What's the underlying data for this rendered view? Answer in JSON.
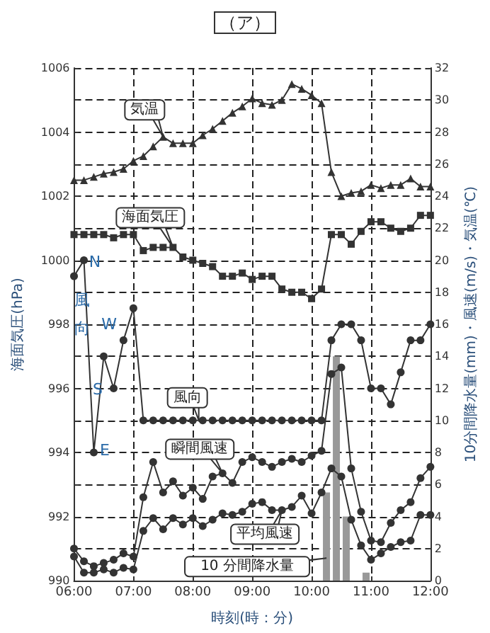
{
  "chart_data": {
    "type": "line",
    "title": "（ア）",
    "xlabel": "時刻(時：分)",
    "ylabel": "海面気圧(hPa)",
    "y2label": "10分間降水量(mm)・風速(m/s)・気温(℃)",
    "x": [
      6,
      6.167,
      6.333,
      6.5,
      6.667,
      6.833,
      7,
      7.167,
      7.333,
      7.5,
      7.667,
      7.833,
      8,
      8.167,
      8.333,
      8.5,
      8.667,
      8.833,
      9,
      9.167,
      9.333,
      9.5,
      9.667,
      9.833,
      10,
      10.167,
      10.333,
      10.5,
      10.667,
      10.833,
      11,
      11.167,
      11.333,
      11.5,
      11.667,
      11.833,
      12
    ],
    "series": [
      {
        "type": "bar",
        "axis": "y2",
        "color": "#999999",
        "x": [
          10.25,
          10.417,
          10.583,
          10.917
        ],
        "values": [
          5.5,
          14,
          4,
          0.5
        ]
      },
      {
        "axis": "y2",
        "color": "#333333",
        "marker": "triangle",
        "values": [
          25.0,
          25.0,
          25.2,
          25.4,
          25.5,
          25.7,
          26.2,
          26.5,
          27.1,
          27.7,
          27.3,
          27.3,
          27.3,
          27.8,
          28.2,
          28.7,
          29.2,
          29.6,
          30.1,
          29.8,
          29.7,
          30.0,
          31.0,
          30.7,
          30.3,
          29.8,
          25.5,
          24.0,
          24.2,
          24.3,
          24.7,
          24.5,
          24.7,
          24.7,
          25.1,
          24.6,
          24.6
        ]
      },
      {
        "color": "#333333",
        "marker": "square",
        "values": [
          1000.8,
          1000.8,
          1000.8,
          1000.8,
          1000.7,
          1000.8,
          1000.8,
          1000.3,
          1000.4,
          1000.4,
          1000.4,
          1000.1,
          1000.0,
          999.9,
          999.8,
          999.5,
          999.5,
          999.6,
          999.4,
          999.5,
          999.5,
          999.1,
          999.0,
          999.0,
          998.8,
          999.1,
          1000.8,
          1000.8,
          1000.5,
          1000.9,
          1001.2,
          1001.2,
          1001.0,
          1000.9,
          1001.0,
          1001.4,
          1001.4
        ]
      },
      {
        "color": "#333333",
        "marker": "circle",
        "values": [
          999.5,
          1000.0,
          994.0,
          997.0,
          996.0,
          997.5,
          998.5,
          995,
          995,
          995,
          995,
          995,
          995,
          995,
          995,
          995,
          995,
          995,
          995,
          995,
          995,
          995,
          995,
          995,
          995,
          995,
          997.5,
          998,
          998,
          997.5,
          996,
          996,
          995.5,
          996.5,
          997.5,
          997.5,
          998
        ]
      },
      {
        "axis": "y2",
        "color": "#333333",
        "marker": "circle",
        "values": [
          2.0,
          1.2,
          0.9,
          1.1,
          1.3,
          1.7,
          1.5,
          5.2,
          7.4,
          5.5,
          6.2,
          5.3,
          5.8,
          5.1,
          6.5,
          6.7,
          6.1,
          7.4,
          7.7,
          7.4,
          7.1,
          7.4,
          7.6,
          7.4,
          7.8,
          8.1,
          12.9,
          13.3,
          7.0,
          4.3,
          2.5,
          2.4,
          3.6,
          4.4,
          4.9,
          6.4,
          7.1
        ]
      },
      {
        "axis": "y2",
        "color": "#333333",
        "marker": "circle",
        "values": [
          1.5,
          0.5,
          0.5,
          0.7,
          0.5,
          0.8,
          0.7,
          3.1,
          3.9,
          3.2,
          3.9,
          3.5,
          3.9,
          3.4,
          3.8,
          4.2,
          4.1,
          4.3,
          4.8,
          4.9,
          4.4,
          4.4,
          4.6,
          5.3,
          4.2,
          5.5,
          7.0,
          6.5,
          3.8,
          2.2,
          1.3,
          1.7,
          2.1,
          2.4,
          2.5,
          4.1,
          4.1
        ]
      }
    ],
    "annotations": [
      {
        "text": "気温",
        "x": 7.5,
        "y": 1003.85
      },
      {
        "text": "海面気圧",
        "x": 7.667,
        "y": 1000.4
      },
      {
        "text": "風向",
        "x": 8.1,
        "y": 995
      },
      {
        "text": "瞬間風速",
        "x": 8.5,
        "y": 993.35
      },
      {
        "text": "平均風速",
        "x": 9.5,
        "y": 992.2
      },
      {
        "text": "10 分間降水量",
        "x": 10.25,
        "y": 990.7
      },
      "N",
      "W",
      "S",
      "E",
      "風向"
    ],
    "xlim": [
      6,
      12
    ],
    "xticks": [
      {
        "value": 6,
        "label": "06:00"
      },
      {
        "value": 7,
        "label": "07:00"
      },
      {
        "value": 8,
        "label": "08:00"
      },
      {
        "value": 9,
        "label": "09:00"
      },
      {
        "value": 10,
        "label": "10:00"
      },
      {
        "value": 11,
        "label": "11:00"
      },
      {
        "value": 12,
        "label": "12:00"
      }
    ],
    "ylim": [
      990,
      1006
    ],
    "yticks": [
      990,
      {
        "value": 991,
        "label": null
      },
      992,
      {
        "value": 993,
        "label": null
      },
      994,
      {
        "value": 995,
        "label": null
      },
      996,
      {
        "value": 997,
        "label": null
      },
      998,
      {
        "value": 999,
        "label": null
      },
      1000,
      {
        "value": 1001,
        "label": null
      },
      1002,
      {
        "value": 1003,
        "label": null
      },
      1004,
      {
        "value": 1005,
        "label": null
      },
      1006
    ],
    "y2lim": [
      0,
      32
    ],
    "y2ticks": [
      0,
      2,
      4,
      6,
      8,
      10,
      12,
      14,
      16,
      18,
      20,
      22,
      24,
      26,
      28,
      30,
      32
    ],
    "grid": true
  }
}
